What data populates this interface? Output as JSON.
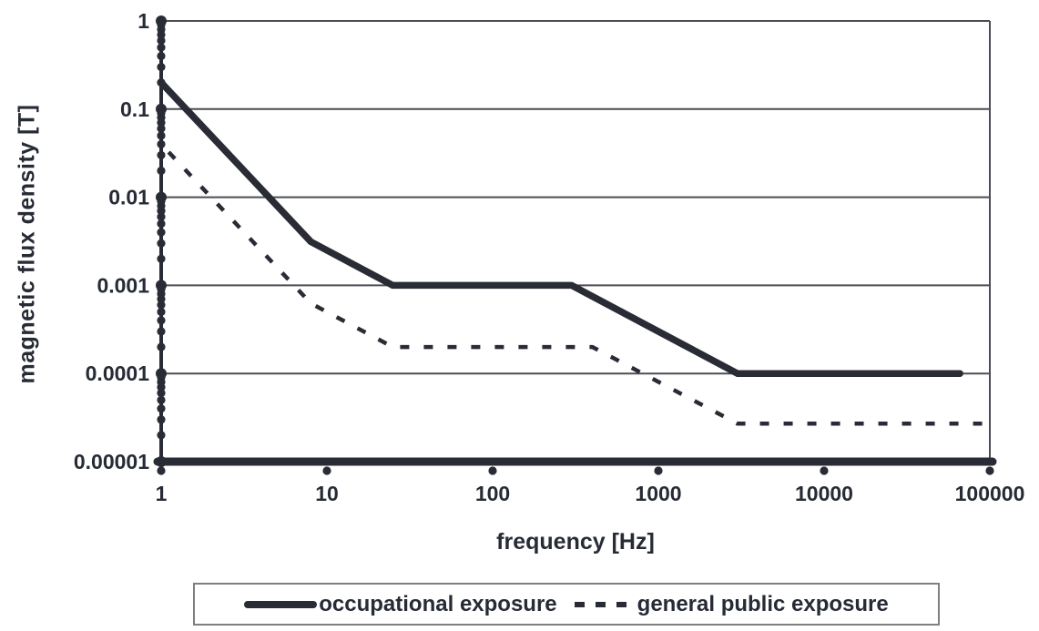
{
  "chart_data": {
    "type": "line",
    "title": "",
    "xlabel": "frequency [Hz]",
    "ylabel": "magnetic flux density [T]",
    "x_scale": "log",
    "y_scale": "log",
    "xlim": [
      1,
      100000
    ],
    "ylim": [
      1e-05,
      1
    ],
    "x_ticks": [
      1,
      10,
      100,
      1000,
      10000,
      100000
    ],
    "x_tick_labels": [
      "1",
      "10",
      "100",
      "1000",
      "10000",
      "100000"
    ],
    "y_ticks": [
      1,
      0.1,
      0.01,
      0.001,
      0.0001,
      1e-05
    ],
    "y_tick_labels": [
      "1",
      "0.1",
      "0.01",
      "0.001",
      "0.0001",
      "0.00001"
    ],
    "grid": "horizontal major gridlines on",
    "legend_position": "bottom",
    "series": [
      {
        "name": "occupational exposure",
        "style": "solid",
        "points": [
          [
            1,
            0.2
          ],
          [
            8,
            0.003125
          ],
          [
            25,
            0.001
          ],
          [
            300,
            0.001
          ],
          [
            3000,
            0.0001
          ],
          [
            66000,
            0.0001
          ]
        ]
      },
      {
        "name": "general public exposure",
        "style": "dashed",
        "points": [
          [
            1,
            0.04
          ],
          [
            8,
            0.000625
          ],
          [
            25,
            0.0002
          ],
          [
            400,
            0.0002
          ],
          [
            3000,
            2.7e-05
          ],
          [
            100000,
            2.7e-05
          ]
        ]
      }
    ]
  },
  "colors": {
    "line": "#292c34",
    "grid": "#4b4d55",
    "text": "#272b36",
    "legend_border": "#7f7f7f",
    "background": "#ffffff"
  }
}
